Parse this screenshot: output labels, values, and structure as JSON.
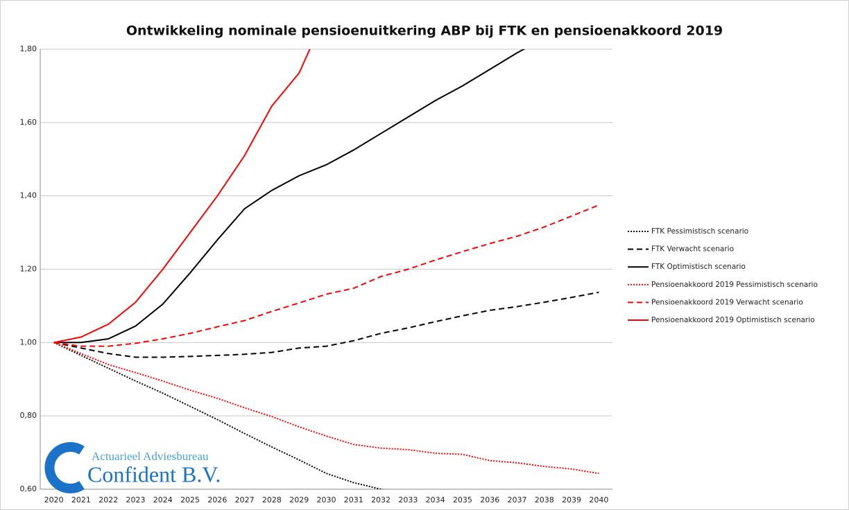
{
  "chart_data": {
    "type": "line",
    "title": "Ontwikkeling nominale pensioenuitkering ABP bij FTK en pensioenakkoord 2019",
    "categories": [
      "2020",
      "2021",
      "2022",
      "2023",
      "2024",
      "2025",
      "2026",
      "2027",
      "2028",
      "2029",
      "2030",
      "2031",
      "2032",
      "2033",
      "2034",
      "2035",
      "2036",
      "2037",
      "2038",
      "2039",
      "2040"
    ],
    "ylim": [
      0.6,
      1.8
    ],
    "yticks": [
      {
        "value": 0.6,
        "label": "0,60"
      },
      {
        "value": 0.8,
        "label": "0,80"
      },
      {
        "value": 1.0,
        "label": "1,00"
      },
      {
        "value": 1.2,
        "label": "1,20"
      },
      {
        "value": 1.4,
        "label": "1,40"
      },
      {
        "value": 1.6,
        "label": "1,60"
      },
      {
        "value": 1.8,
        "label": "1,80"
      }
    ],
    "grid": true,
    "legend": "right",
    "series": [
      {
        "name": "FTK Pessimistisch scenario",
        "color": "#000000",
        "linestyle": "dotted",
        "values": [
          1.0,
          0.965,
          0.93,
          0.895,
          0.862,
          0.826,
          0.79,
          0.752,
          0.715,
          0.68,
          0.643,
          0.618,
          0.6,
          0.585,
          null,
          null,
          null,
          null,
          null,
          null,
          null
        ]
      },
      {
        "name": "FTK Verwacht scenario",
        "color": "#000000",
        "linestyle": "dashed",
        "values": [
          1.0,
          0.985,
          0.97,
          0.96,
          0.96,
          0.962,
          0.965,
          0.968,
          0.973,
          0.985,
          0.99,
          1.005,
          1.025,
          1.04,
          1.057,
          1.073,
          1.088,
          1.098,
          1.11,
          1.123,
          1.137
        ]
      },
      {
        "name": "FTK Optimistisch scenario",
        "color": "#000000",
        "linestyle": "solid",
        "values": [
          1.0,
          1.0,
          1.01,
          1.045,
          1.105,
          1.19,
          1.28,
          1.365,
          1.415,
          1.455,
          1.485,
          1.525,
          1.57,
          1.615,
          1.66,
          1.7,
          1.745,
          1.79,
          1.83,
          null,
          null
        ]
      },
      {
        "name": "Pensioenakkoord 2019 Pessimistisch scenario",
        "color": "#ff0000",
        "linestyle": "dotted",
        "values": [
          1.0,
          0.97,
          0.94,
          0.918,
          0.895,
          0.87,
          0.848,
          0.822,
          0.798,
          0.77,
          0.745,
          0.722,
          0.712,
          0.708,
          0.698,
          0.695,
          0.678,
          0.672,
          0.662,
          0.655,
          0.643
        ]
      },
      {
        "name": "Pensioenakkoord 2019 Verwacht scenario",
        "color": "#ff0000",
        "linestyle": "dashed",
        "values": [
          1.0,
          0.99,
          0.99,
          0.998,
          1.01,
          1.025,
          1.043,
          1.06,
          1.085,
          1.108,
          1.132,
          1.148,
          1.18,
          1.2,
          1.225,
          1.248,
          1.27,
          1.29,
          1.315,
          1.345,
          1.375
        ]
      },
      {
        "name": "Pensioenakkoord 2019 Optimistisch scenario",
        "color": "#ff0000",
        "linestyle": "solid",
        "values": [
          1.0,
          1.015,
          1.05,
          1.11,
          1.2,
          1.3,
          1.4,
          1.51,
          1.645,
          1.735,
          1.9,
          null,
          null,
          null,
          null,
          null,
          null,
          null,
          null,
          null,
          null
        ]
      }
    ],
    "watermark": {
      "line1": "Actuarieel Adviesbureau",
      "line2": "Confident B.V."
    }
  }
}
